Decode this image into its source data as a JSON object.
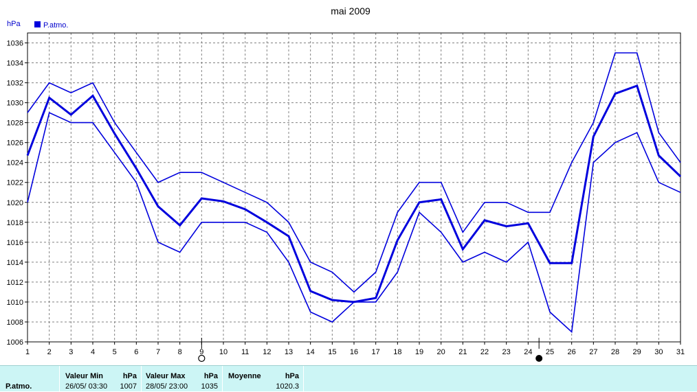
{
  "chart_data": {
    "type": "line",
    "title": "mai 2009",
    "ylabel": "hPa",
    "ylim": [
      1006,
      1037
    ],
    "yticks": [
      1006,
      1008,
      1010,
      1012,
      1014,
      1016,
      1018,
      1020,
      1022,
      1024,
      1026,
      1028,
      1030,
      1032,
      1034,
      1036
    ],
    "x": [
      1,
      2,
      3,
      4,
      5,
      6,
      7,
      8,
      9,
      10,
      11,
      12,
      13,
      14,
      15,
      16,
      17,
      18,
      19,
      20,
      21,
      22,
      23,
      24,
      25,
      26,
      27,
      28,
      29,
      30,
      31
    ],
    "legend": "P.atmo.",
    "legend_position": "top-left",
    "grid": true,
    "series": [
      {
        "name": "P.atmo.",
        "role": "max",
        "values": [
          1029,
          1032,
          1031,
          1032,
          1028,
          1025,
          1022,
          1023,
          1023,
          1022,
          1021,
          1020,
          1018,
          1014,
          1013,
          1011,
          1013,
          1019,
          1022,
          1022,
          1017,
          1020,
          1020,
          1019,
          1019,
          1024,
          1028,
          1035,
          1035,
          1027,
          1024
        ]
      },
      {
        "name": "P.atmo.",
        "role": "mean",
        "values": [
          1024.7,
          1030.5,
          1028.8,
          1030.7,
          1026.9,
          1023.4,
          1019.6,
          1017.7,
          1020.4,
          1020.1,
          1019.3,
          1018.0,
          1016.6,
          1011.1,
          1010.2,
          1010.0,
          1010.4,
          1016.2,
          1020.0,
          1020.3,
          1015.3,
          1018.2,
          1017.6,
          1017.9,
          1013.9,
          1013.9,
          1026.6,
          1030.9,
          1031.7,
          1024.7,
          1022.6
        ]
      },
      {
        "name": "P.atmo.",
        "role": "min",
        "values": [
          1020,
          1029,
          1028,
          1028,
          1025,
          1022,
          1016,
          1015,
          1018,
          1018,
          1018,
          1017,
          1014,
          1009,
          1008,
          1010,
          1010,
          1013,
          1019,
          1017,
          1014,
          1015,
          1014,
          1016,
          1009,
          1007,
          1024,
          1026,
          1027,
          1022,
          1021
        ]
      }
    ],
    "moon_phases": [
      {
        "day": 9,
        "phase": "full"
      },
      {
        "day": 24.5,
        "phase": "new"
      }
    ],
    "colors": {
      "line": "#0000dd",
      "grid": "#808080",
      "footer_bg": "#ccf5f5"
    }
  },
  "footer": {
    "series_label": "P.atmo.",
    "min": {
      "header": "Valeur Min",
      "unit": "hPa",
      "date": "26/05/  03:30",
      "value": "1007"
    },
    "max": {
      "header": "Valeur Max",
      "unit": "hPa",
      "date": "28/05/  23:00",
      "value": "1035"
    },
    "mean": {
      "header": "Moyenne",
      "unit": "hPa",
      "value": "1020.3"
    }
  }
}
